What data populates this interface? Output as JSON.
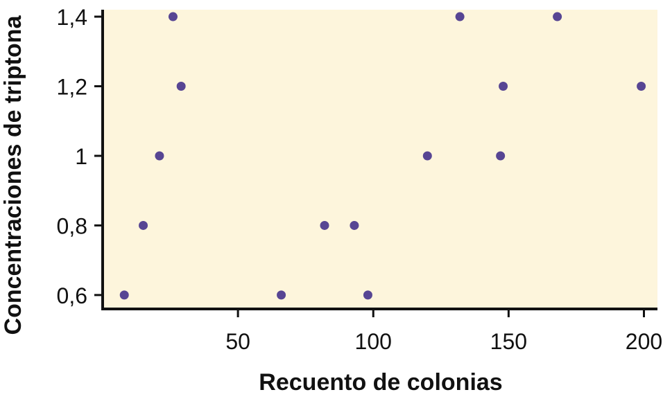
{
  "chart_data": {
    "type": "scatter",
    "xlabel": "Recuento de colonias",
    "ylabel": "Concentraciones de triptona",
    "xlim": [
      0,
      205
    ],
    "ylim": [
      0.56,
      1.42
    ],
    "x_ticks": [
      {
        "value": 50,
        "label": "50"
      },
      {
        "value": 100,
        "label": "100"
      },
      {
        "value": 150,
        "label": "150"
      },
      {
        "value": 200,
        "label": "200"
      }
    ],
    "y_ticks": [
      {
        "value": 0.6,
        "label": "0,6"
      },
      {
        "value": 0.8,
        "label": "0,8"
      },
      {
        "value": 1.0,
        "label": "1"
      },
      {
        "value": 1.2,
        "label": "1,2"
      },
      {
        "value": 1.4,
        "label": "1,4"
      }
    ],
    "points": [
      {
        "x": 8,
        "y": 0.6
      },
      {
        "x": 66,
        "y": 0.6
      },
      {
        "x": 98,
        "y": 0.6
      },
      {
        "x": 15,
        "y": 0.8
      },
      {
        "x": 82,
        "y": 0.8
      },
      {
        "x": 93,
        "y": 0.8
      },
      {
        "x": 21,
        "y": 1.0
      },
      {
        "x": 120,
        "y": 1.0
      },
      {
        "x": 147,
        "y": 1.0
      },
      {
        "x": 29,
        "y": 1.2
      },
      {
        "x": 148,
        "y": 1.2
      },
      {
        "x": 199,
        "y": 1.2
      },
      {
        "x": 26,
        "y": 1.4
      },
      {
        "x": 132,
        "y": 1.4
      },
      {
        "x": 168,
        "y": 1.4
      }
    ],
    "grid": false,
    "colors": {
      "plot_background": "#FDF5DC",
      "point": "#574593",
      "axis": "#111111"
    }
  }
}
